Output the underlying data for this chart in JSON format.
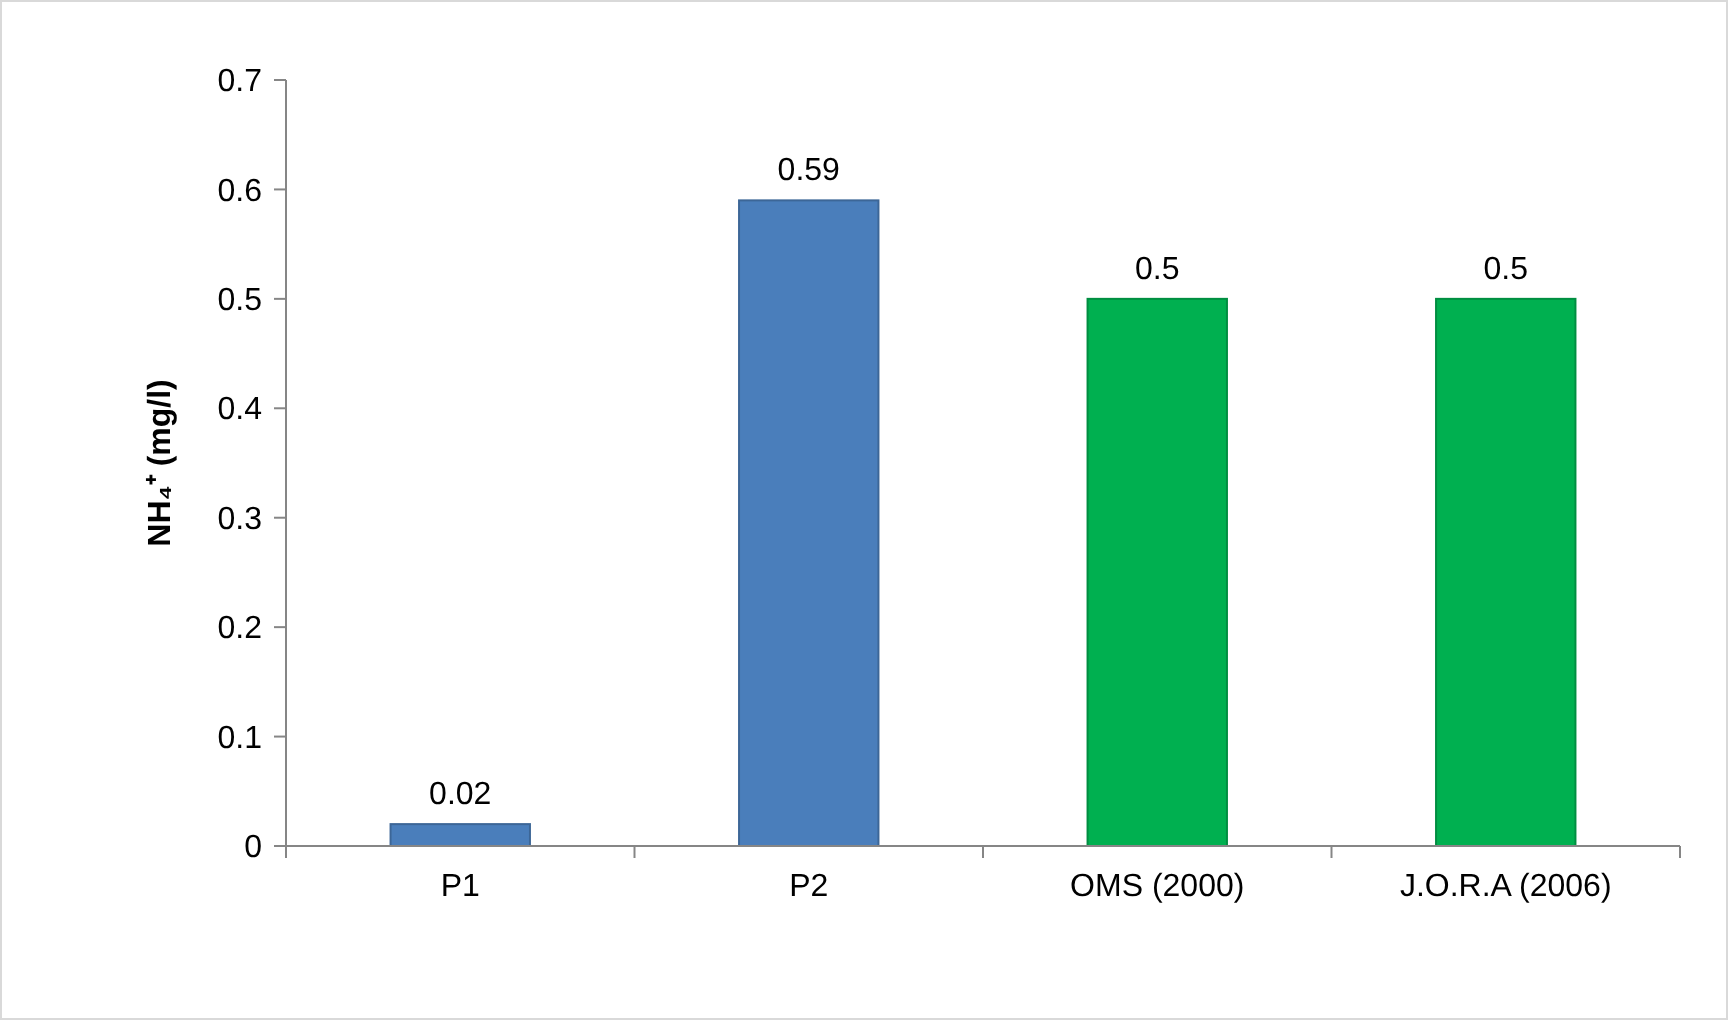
{
  "chart_data": {
    "type": "bar",
    "ylabel": "NH₄⁺ (mg/l)",
    "categories": [
      "P1",
      "P2",
      "OMS (2000)",
      "J.O.R.A (2006)"
    ],
    "values": [
      0.02,
      0.59,
      0.5,
      0.5
    ],
    "colors": [
      "#4a7ebb",
      "#4a7ebb",
      "#00b050",
      "#00b050"
    ],
    "ylim": [
      0,
      0.7
    ],
    "yticks": [
      0,
      0.1,
      0.2,
      0.3,
      0.4,
      0.5,
      0.6,
      0.7
    ],
    "data_labels": true,
    "grid": false
  }
}
